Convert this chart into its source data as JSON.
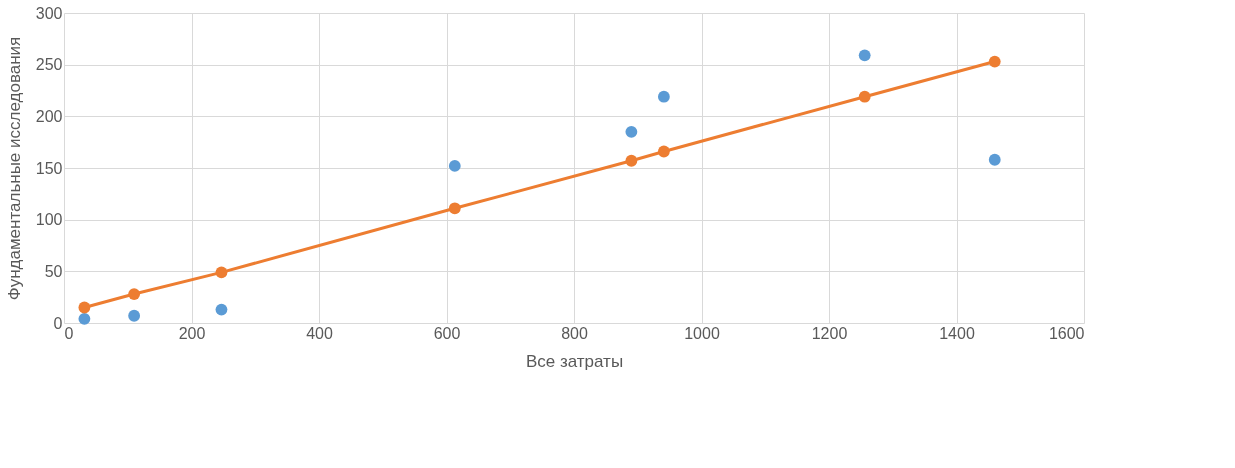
{
  "chart_data": {
    "type": "scatter",
    "xlabel": "Все затраты",
    "ylabel": "Фундаментальные исследования",
    "x": [
      32,
      110,
      247,
      613,
      890,
      941,
      1256,
      1460
    ],
    "series": [
      {
        "color": "#5b9bd5",
        "values": [
          4,
          7,
          13,
          152,
          185,
          219,
          259,
          158
        ]
      },
      {
        "type": "line",
        "color": "#ed7d31",
        "values": [
          15,
          28,
          49,
          111,
          157,
          166,
          219,
          253
        ]
      }
    ],
    "xlim": [
      0,
      1600
    ],
    "xticks": [
      0,
      200,
      400,
      600,
      800,
      1000,
      1200,
      1400,
      1600
    ],
    "ylim": [
      0,
      300
    ],
    "yticks": [
      0,
      50,
      100,
      150,
      200,
      250,
      300
    ],
    "grid": true,
    "marker": "circle",
    "line_style": "solid"
  }
}
